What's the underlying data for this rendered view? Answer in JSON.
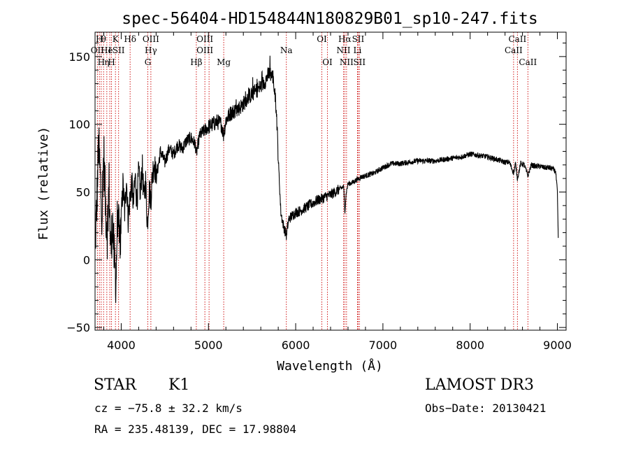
{
  "chart_data": {
    "type": "line",
    "title": "spec-56404-HD154844N180829B01_sp10-247.fits",
    "xlabel": "Wavelength (Å)",
    "ylabel": "Flux (relative)",
    "xlim": [
      3700,
      9100
    ],
    "ylim": [
      -52,
      168
    ],
    "xticks": [
      4000,
      5000,
      6000,
      7000,
      8000,
      9000
    ],
    "yticks": [
      -50,
      0,
      50,
      100,
      150
    ],
    "grid": false,
    "line_color": "#000000",
    "marker_color": "#cc0000",
    "anchors": [
      [
        3700,
        10
      ],
      [
        3720,
        40
      ],
      [
        3740,
        85
      ],
      [
        3760,
        60
      ],
      [
        3780,
        35
      ],
      [
        3800,
        80
      ],
      [
        3820,
        40
      ],
      [
        3840,
        20
      ],
      [
        3860,
        55
      ],
      [
        3880,
        5
      ],
      [
        3900,
        30
      ],
      [
        3920,
        0
      ],
      [
        3940,
        -15
      ],
      [
        3960,
        40
      ],
      [
        3980,
        10
      ],
      [
        4000,
        30
      ],
      [
        4020,
        55
      ],
      [
        4040,
        35
      ],
      [
        4060,
        60
      ],
      [
        4080,
        30
      ],
      [
        4100,
        45
      ],
      [
        4120,
        58
      ],
      [
        4140,
        40
      ],
      [
        4160,
        62
      ],
      [
        4180,
        42
      ],
      [
        4200,
        65
      ],
      [
        4220,
        48
      ],
      [
        4240,
        70
      ],
      [
        4260,
        45
      ],
      [
        4280,
        58
      ],
      [
        4300,
        25
      ],
      [
        4320,
        52
      ],
      [
        4340,
        45
      ],
      [
        4360,
        65
      ],
      [
        4380,
        72
      ],
      [
        4400,
        60
      ],
      [
        4450,
        80
      ],
      [
        4500,
        72
      ],
      [
        4550,
        82
      ],
      [
        4600,
        78
      ],
      [
        4650,
        85
      ],
      [
        4700,
        82
      ],
      [
        4750,
        88
      ],
      [
        4800,
        90
      ],
      [
        4850,
        85
      ],
      [
        4861,
        78
      ],
      [
        4900,
        92
      ],
      [
        4950,
        95
      ],
      [
        5000,
        98
      ],
      [
        5050,
        100
      ],
      [
        5100,
        102
      ],
      [
        5150,
        100
      ],
      [
        5172,
        92
      ],
      [
        5200,
        103
      ],
      [
        5250,
        108
      ],
      [
        5300,
        110
      ],
      [
        5350,
        112
      ],
      [
        5400,
        115
      ],
      [
        5450,
        120
      ],
      [
        5500,
        122
      ],
      [
        5550,
        125
      ],
      [
        5600,
        128
      ],
      [
        5650,
        132
      ],
      [
        5700,
        138
      ],
      [
        5740,
        135
      ],
      [
        5780,
        110
      ],
      [
        5800,
        75
      ],
      [
        5830,
        35
      ],
      [
        5860,
        25
      ],
      [
        5893,
        18
      ],
      [
        5920,
        30
      ],
      [
        5950,
        32
      ],
      [
        6000,
        35
      ],
      [
        6050,
        36
      ],
      [
        6100,
        38
      ],
      [
        6150,
        40
      ],
      [
        6200,
        42
      ],
      [
        6250,
        44
      ],
      [
        6300,
        45
      ],
      [
        6350,
        47
      ],
      [
        6400,
        48
      ],
      [
        6450,
        50
      ],
      [
        6500,
        52
      ],
      [
        6550,
        54
      ],
      [
        6563,
        35
      ],
      [
        6580,
        50
      ],
      [
        6600,
        56
      ],
      [
        6650,
        57
      ],
      [
        6700,
        59
      ],
      [
        6750,
        61
      ],
      [
        6800,
        62
      ],
      [
        6850,
        63
      ],
      [
        6900,
        64
      ],
      [
        6950,
        66
      ],
      [
        7000,
        68
      ],
      [
        7100,
        71
      ],
      [
        7200,
        71
      ],
      [
        7300,
        72
      ],
      [
        7400,
        73
      ],
      [
        7500,
        73
      ],
      [
        7600,
        73
      ],
      [
        7700,
        74
      ],
      [
        7800,
        75
      ],
      [
        7900,
        76
      ],
      [
        8000,
        78
      ],
      [
        8100,
        77
      ],
      [
        8200,
        76
      ],
      [
        8300,
        74
      ],
      [
        8400,
        72
      ],
      [
        8450,
        72
      ],
      [
        8498,
        64
      ],
      [
        8520,
        71
      ],
      [
        8542,
        60
      ],
      [
        8580,
        71
      ],
      [
        8620,
        70
      ],
      [
        8662,
        62
      ],
      [
        8700,
        70
      ],
      [
        8750,
        69
      ],
      [
        8800,
        69
      ],
      [
        8850,
        68
      ],
      [
        8900,
        68
      ],
      [
        8950,
        67
      ],
      [
        8980,
        65
      ],
      [
        9000,
        50
      ],
      [
        9010,
        15
      ]
    ],
    "lines": [
      {
        "x": 3727,
        "rows": [
          {
            "row": 1,
            "text": "OII"
          }
        ]
      },
      {
        "x": 3750,
        "rows": [
          {
            "row": 0,
            "text": "H"
          }
        ]
      },
      {
        "x": 3771,
        "rows": [
          {
            "row": 2,
            "text": "H"
          }
        ]
      },
      {
        "x": 3798,
        "rows": [
          {
            "row": 0,
            "text": "θ"
          }
        ]
      },
      {
        "x": 3835,
        "rows": [
          {
            "row": 2,
            "text": "η"
          },
          {
            "row": 1,
            "text": "He"
          }
        ]
      },
      {
        "x": 3869,
        "rows": [
          {
            "row": 1,
            "text": "I"
          }
        ]
      },
      {
        "x": 3889,
        "rows": [
          {
            "row": 2,
            "text": "H"
          }
        ]
      },
      {
        "x": 3934,
        "rows": [
          {
            "row": 0,
            "text": "K"
          }
        ]
      },
      {
        "x": 3970,
        "rows": [
          {
            "row": 1,
            "text": "SII"
          }
        ]
      },
      {
        "x": 4102,
        "rows": [
          {
            "row": 0,
            "text": "Hδ"
          }
        ]
      },
      {
        "x": 4305,
        "rows": [
          {
            "row": 2,
            "text": "G"
          }
        ]
      },
      {
        "x": 4340,
        "rows": [
          {
            "row": 0,
            "text": "OIII"
          },
          {
            "row": 1,
            "text": "Hγ"
          }
        ]
      },
      {
        "x": 4861,
        "rows": [
          {
            "row": 2,
            "text": "Hβ"
          }
        ]
      },
      {
        "x": 4959,
        "rows": [
          {
            "row": 0,
            "text": "OIII"
          },
          {
            "row": 1,
            "text": "OIII"
          }
        ]
      },
      {
        "x": 5007,
        "rows": []
      },
      {
        "x": 5175,
        "rows": [
          {
            "row": 2,
            "text": "Mg"
          }
        ]
      },
      {
        "x": 5893,
        "rows": [
          {
            "row": 1,
            "text": "Na"
          }
        ]
      },
      {
        "x": 6300,
        "rows": [
          {
            "row": 0,
            "text": "OI"
          }
        ]
      },
      {
        "x": 6364,
        "rows": [
          {
            "row": 2,
            "text": "OI"
          }
        ]
      },
      {
        "x": 6548,
        "rows": [
          {
            "row": 1,
            "text": "NII"
          }
        ]
      },
      {
        "x": 6563,
        "rows": [
          {
            "row": 0,
            "text": "Hα"
          }
        ]
      },
      {
        "x": 6583,
        "rows": [
          {
            "row": 2,
            "text": "NII"
          }
        ]
      },
      {
        "x": 6708,
        "rows": [
          {
            "row": 1,
            "text": "Li"
          }
        ]
      },
      {
        "x": 6716,
        "rows": [
          {
            "row": 0,
            "text": "SII"
          }
        ]
      },
      {
        "x": 6731,
        "rows": [
          {
            "row": 2,
            "text": "SII"
          }
        ]
      },
      {
        "x": 8498,
        "rows": [
          {
            "row": 1,
            "text": "CaII"
          }
        ]
      },
      {
        "x": 8542,
        "rows": [
          {
            "row": 0,
            "text": "CaII"
          }
        ]
      },
      {
        "x": 8662,
        "rows": [
          {
            "row": 2,
            "text": "CaII"
          }
        ]
      }
    ]
  },
  "footer": {
    "object_type": "STAR",
    "subclass": "K1",
    "survey": "LAMOST DR3",
    "cz": "cz = −75.8 ± 32.2 km/s",
    "obs_date": "Obs−Date: 20130421",
    "radec": "RA = 235.48139, DEC =  17.98804"
  }
}
